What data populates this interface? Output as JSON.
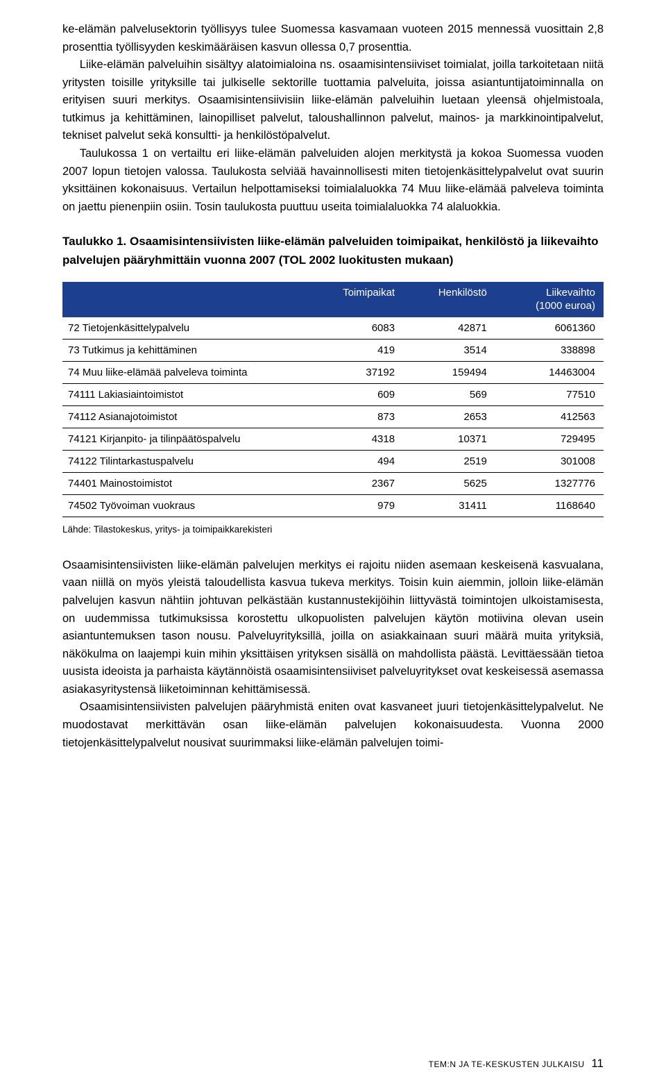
{
  "paragraphs": {
    "p1": "ke-elämän palvelusektorin työllisyys tulee Suomessa kasvamaan vuoteen 2015 mennessä vuosittain 2,8 prosenttia työllisyyden keskimääräisen kasvun ollessa 0,7 prosenttia.",
    "p2_indent": "Liike-elämän palveluihin sisältyy alatoimialoina ns. osaamisintensiiviset toimialat, joilla tarkoitetaan niitä yritysten toisille yrityksille tai julkiselle sektorille tuottamia palveluita, joissa asiantuntijatoiminnalla on erityisen suuri merkitys. Osaamisintensiivisiin liike-elämän palveluihin luetaan yleensä ohjelmistoala, tutkimus ja kehittäminen, lainopilliset palvelut, taloushallinnon palvelut, mainos- ja markkinointipalvelut, tekniset palvelut sekä konsultti- ja henkilöstöpalvelut.",
    "p3_indent": "Taulukossa 1 on vertailtu eri liike-elämän palveluiden alojen merkitystä ja kokoa Suomessa vuoden 2007 lopun tietojen valossa. Taulukosta selviää havainnollisesti miten tietojenkäsittelypalvelut ovat suurin yksittäinen kokonaisuus. Vertailun helpottamiseksi toimialaluokka 74 Muu liike-elämää palveleva toiminta on jaettu pienenpiin osiin. Tosin taulukosta puuttuu useita toimialaluokka 74 alaluokkia.",
    "p4": "Osaamisintensiivisten liike-elämän palvelujen merkitys ei rajoitu niiden asemaan keskeisenä kasvualana, vaan niillä on myös yleistä taloudellista kasvua tukeva merkitys. Toisin kuin aiemmin, jolloin liike-elämän palvelujen kasvun nähtiin johtuvan pelkästään kustannustekijöihin liittyvästä toimintojen ulkoistamisesta, on uudemmissa tutkimuksissa korostettu ulkopuolisten palvelujen käytön motiivina olevan usein asiantuntemuksen tason nousu. Palveluyrityksillä, joilla on asiakkainaan suuri määrä muita yrityksiä, näkökulma on laajempi kuin mihin yksittäisen yrityksen sisällä on mahdollista päästä. Levittäessään tietoa uusista ideoista ja parhaista käytännöistä osaamisintensiiviset palveluyritykset ovat keskeisessä asemassa asiakasyritystensä liiketoiminnan kehittämisessä.",
    "p5_indent": "Osaamisintensiivisten palvelujen pääryhmistä eniten ovat kasvaneet juuri tietojenkäsittelypalvelut. Ne muodostavat merkittävän osan liike-elämän palvelujen kokonaisuudesta. Vuonna 2000 tietojenkäsittelypalvelut nousivat suurimmaksi liike-elämän palvelujen toimi-"
  },
  "table_heading": "Taulukko 1. Osaamisintensiivisten liike-elämän palveluiden toimipaikat, henkilöstö ja liikevaihto palvelujen pääryhmittäin vuonna 2007 (TOL 2002 luokitusten mukaan)",
  "table": {
    "header_bg": "#1c3f8f",
    "header_fg": "#ffffff",
    "columns": [
      "",
      "Toimipaikat",
      "Henkilöstö",
      "Liikevaihto (1000 euroa)"
    ],
    "rows": [
      [
        "72 Tietojenkäsittelypalvelu",
        "6083",
        "42871",
        "6061360"
      ],
      [
        "73 Tutkimus ja kehittäminen",
        "419",
        "3514",
        "338898"
      ],
      [
        "74 Muu liike-elämää palveleva toiminta",
        "37192",
        "159494",
        "14463004"
      ],
      [
        "74111 Lakiasiaintoimistot",
        "609",
        "569",
        "77510"
      ],
      [
        "74112 Asianajotoimistot",
        "873",
        "2653",
        "412563"
      ],
      [
        "74121 Kirjanpito- ja tilinpäätöspalvelu",
        "4318",
        "10371",
        "729495"
      ],
      [
        "74122 Tilintarkastuspalvelu",
        "494",
        "2519",
        "301008"
      ],
      [
        "74401 Mainostoimistot",
        "2367",
        "5625",
        "1327776"
      ],
      [
        "74502 Työvoiman vuokraus",
        "979",
        "31411",
        "1168640"
      ]
    ]
  },
  "source_note": "Lähde: Tilastokeskus, yritys- ja toimipaikkarekisteri",
  "footer": {
    "text": "TEM:N JA TE-KESKUSTEN JULKAISU",
    "page": "11"
  }
}
